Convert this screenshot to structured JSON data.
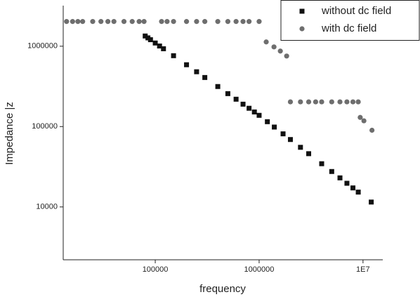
{
  "chart_data": {
    "type": "scatter",
    "x_label": "frequency",
    "y_label": "Impedance |z",
    "log_x": true,
    "log_y": true,
    "xlim": [
      13000,
      15500000
    ],
    "ylim": [
      2200,
      3200000
    ],
    "xticks": [
      100000,
      1000000,
      {
        "value": 10000000,
        "label": "1E7"
      }
    ],
    "yticks": [
      10000,
      100000,
      1000000
    ],
    "legend": "upper right",
    "series": [
      {
        "name": "without dc field",
        "color": "#111111",
        "marker": "square",
        "x": [
          80000,
          85000,
          90000,
          100000,
          110000,
          120000,
          150000,
          200000,
          250000,
          300000,
          400000,
          500000,
          600000,
          700000,
          800000,
          900000,
          1000000,
          1200000,
          1400000,
          1700000,
          2000000,
          2500000,
          3000000,
          4000000,
          5000000,
          6000000,
          7000000,
          8000000,
          9000000,
          12000000
        ],
        "values": [
          1340000,
          1270000,
          1205000,
          1096000,
          1006000,
          930000,
          762000,
          588000,
          481000,
          408000,
          315000,
          257000,
          219000,
          190000,
          169000,
          152000,
          138000,
          115000,
          98600,
          81200,
          69000,
          55200,
          46000,
          34500,
          27600,
          23000,
          19700,
          17250,
          15300,
          11500
        ]
      },
      {
        "name": "with dc field",
        "color": "#6e6e6e",
        "marker": "circle",
        "x": [
          14000,
          16000,
          18000,
          20000,
          25000,
          30000,
          35000,
          40000,
          50000,
          60000,
          70000,
          78000,
          115000,
          130000,
          150000,
          200000,
          250000,
          300000,
          400000,
          500000,
          600000,
          700000,
          800000,
          1000000,
          1170000,
          1390000,
          1600000,
          1840000,
          2000000,
          2500000,
          3000000,
          3500000,
          4000000,
          5000000,
          6000000,
          7000000,
          8000000,
          9000000,
          9400000,
          10200000,
          12200000
        ],
        "values": [
          2030000,
          2030000,
          2030000,
          2030000,
          2030000,
          2030000,
          2030000,
          2030000,
          2030000,
          2030000,
          2030000,
          2030000,
          2030000,
          2030000,
          2030000,
          2030000,
          2030000,
          2030000,
          2030000,
          2030000,
          2030000,
          2030000,
          2030000,
          2030000,
          1130000,
          980000,
          870000,
          755000,
          203000,
          203000,
          203000,
          203000,
          203000,
          203000,
          203000,
          203000,
          203000,
          203000,
          130000,
          118000,
          90000
        ]
      }
    ]
  }
}
